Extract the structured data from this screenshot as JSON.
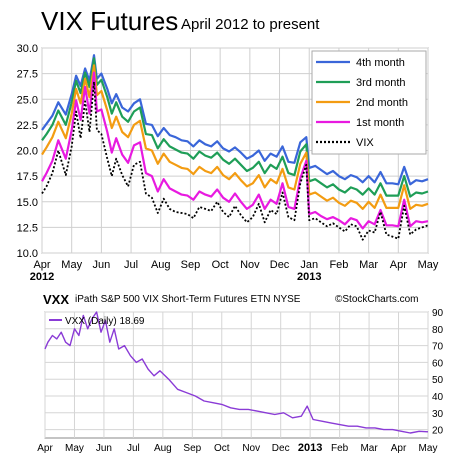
{
  "header": {
    "title": "VIX Futures",
    "subtitle": "April 2012 to present"
  },
  "chart_data": [
    {
      "type": "line",
      "title": "VIX Futures",
      "subtitle": "April 2012 to present",
      "ylim": [
        10.0,
        30.0
      ],
      "yticks": [
        "10.0",
        "12.5",
        "15.0",
        "17.5",
        "20.0",
        "22.5",
        "25.0",
        "27.5",
        "30.0"
      ],
      "xticks": [
        "Apr",
        "May",
        "Jun",
        "Jul",
        "Aug",
        "Sep",
        "Oct",
        "Nov",
        "Dec",
        "Jan",
        "Feb",
        "Mar",
        "Apr",
        "May"
      ],
      "year_labels": [
        "2012",
        "2013"
      ],
      "grid": true,
      "legend_position": "top-right",
      "x_unit": "months since start of April 2012",
      "series": [
        {
          "name": "4th month",
          "color": "#3a66d9",
          "x": [
            0,
            0.15,
            0.35,
            0.55,
            0.8,
            1.0,
            1.15,
            1.3,
            1.45,
            1.6,
            1.75,
            1.85,
            2.0,
            2.2,
            2.35,
            2.5,
            2.7,
            2.9,
            3.1,
            3.3,
            3.5,
            3.7,
            3.9,
            4.1,
            4.3,
            4.5,
            4.7,
            4.9,
            5.1,
            5.3,
            5.5,
            5.7,
            5.9,
            6.1,
            6.3,
            6.5,
            6.7,
            6.9,
            7.1,
            7.3,
            7.5,
            7.7,
            7.9,
            8.1,
            8.3,
            8.5,
            8.7,
            8.9,
            9.0,
            9.2,
            9.4,
            9.6,
            9.8,
            10.0,
            10.2,
            10.4,
            10.6,
            10.8,
            11.0,
            11.2,
            11.4,
            11.6,
            11.8,
            12.0,
            12.2,
            12.4,
            12.6,
            12.8,
            13.0
          ],
          "y": [
            22.0,
            22.6,
            23.4,
            24.7,
            23.5,
            25.5,
            27.3,
            26.3,
            28.0,
            26.8,
            29.3,
            27.0,
            27.5,
            26.0,
            24.6,
            25.5,
            24.2,
            23.8,
            24.6,
            25.0,
            22.6,
            22.5,
            21.4,
            22.2,
            21.5,
            21.3,
            21.0,
            20.9,
            20.4,
            21.0,
            20.6,
            20.4,
            20.9,
            20.2,
            19.9,
            20.3,
            19.8,
            19.2,
            19.5,
            20.0,
            19.0,
            19.7,
            19.4,
            20.4,
            18.9,
            18.8,
            20.8,
            21.3,
            18.3,
            18.5,
            18.1,
            17.7,
            18.0,
            17.5,
            17.2,
            17.6,
            17.4,
            16.9,
            17.5,
            16.9,
            17.9,
            16.8,
            16.8,
            16.7,
            18.4,
            16.7,
            17.1,
            17.0,
            17.2
          ]
        },
        {
          "name": "3rd month",
          "color": "#1f9e57",
          "x": [
            0,
            0.15,
            0.35,
            0.55,
            0.8,
            1.0,
            1.15,
            1.3,
            1.45,
            1.6,
            1.75,
            1.85,
            2.0,
            2.2,
            2.35,
            2.5,
            2.7,
            2.9,
            3.1,
            3.3,
            3.5,
            3.7,
            3.9,
            4.1,
            4.3,
            4.5,
            4.7,
            4.9,
            5.1,
            5.3,
            5.5,
            5.7,
            5.9,
            6.1,
            6.3,
            6.5,
            6.7,
            6.9,
            7.1,
            7.3,
            7.5,
            7.7,
            7.9,
            8.1,
            8.3,
            8.5,
            8.7,
            8.9,
            9.0,
            9.2,
            9.4,
            9.6,
            9.8,
            10.0,
            10.2,
            10.4,
            10.6,
            10.8,
            11.0,
            11.2,
            11.4,
            11.6,
            11.8,
            12.0,
            12.2,
            12.4,
            12.6,
            12.8,
            13.0
          ],
          "y": [
            21.0,
            21.6,
            22.5,
            23.9,
            22.5,
            24.7,
            26.8,
            25.6,
            27.6,
            26.2,
            29.0,
            26.4,
            26.9,
            25.2,
            23.6,
            24.7,
            23.3,
            22.8,
            23.8,
            24.2,
            21.6,
            21.5,
            20.2,
            21.1,
            20.4,
            20.1,
            19.8,
            19.7,
            19.2,
            19.9,
            19.5,
            19.3,
            19.8,
            19.1,
            18.7,
            19.2,
            18.6,
            18.0,
            18.3,
            18.9,
            17.8,
            18.6,
            18.2,
            19.4,
            17.8,
            17.6,
            19.9,
            20.6,
            17.0,
            17.2,
            16.8,
            16.4,
            16.7,
            16.2,
            15.9,
            16.4,
            16.2,
            15.7,
            16.3,
            15.7,
            16.8,
            15.6,
            15.6,
            15.6,
            17.5,
            15.5,
            15.9,
            15.8,
            16.0
          ]
        },
        {
          "name": "2nd month",
          "color": "#f39c12",
          "x": [
            0,
            0.15,
            0.35,
            0.55,
            0.8,
            1.0,
            1.15,
            1.3,
            1.45,
            1.6,
            1.75,
            1.85,
            2.0,
            2.2,
            2.35,
            2.5,
            2.7,
            2.9,
            3.1,
            3.3,
            3.5,
            3.7,
            3.9,
            4.1,
            4.3,
            4.5,
            4.7,
            4.9,
            5.1,
            5.3,
            5.5,
            5.7,
            5.9,
            6.1,
            6.3,
            6.5,
            6.7,
            6.9,
            7.1,
            7.3,
            7.5,
            7.7,
            7.9,
            8.1,
            8.3,
            8.5,
            8.7,
            8.9,
            9.0,
            9.2,
            9.4,
            9.6,
            9.8,
            10.0,
            10.2,
            10.4,
            10.6,
            10.8,
            11.0,
            11.2,
            11.4,
            11.6,
            11.8,
            12.0,
            12.2,
            12.4,
            12.6,
            12.8,
            13.0
          ],
          "y": [
            19.6,
            20.3,
            21.3,
            22.8,
            21.2,
            23.6,
            26.0,
            24.6,
            27.0,
            25.2,
            28.3,
            25.4,
            25.8,
            23.9,
            22.2,
            23.3,
            21.8,
            21.3,
            22.5,
            22.9,
            20.2,
            20.0,
            18.7,
            19.7,
            18.9,
            18.6,
            18.3,
            18.2,
            17.7,
            18.4,
            18.0,
            17.8,
            18.4,
            17.6,
            17.2,
            17.8,
            17.1,
            16.5,
            16.8,
            17.6,
            16.4,
            17.2,
            16.8,
            18.2,
            16.4,
            16.2,
            18.7,
            19.8,
            15.7,
            15.9,
            15.5,
            15.1,
            15.4,
            14.9,
            14.6,
            15.1,
            14.9,
            14.3,
            15.0,
            14.4,
            15.7,
            14.4,
            14.4,
            14.4,
            16.6,
            14.3,
            14.7,
            14.6,
            14.8
          ]
        },
        {
          "name": "1st month",
          "color": "#e81ae0",
          "x": [
            0,
            0.15,
            0.35,
            0.55,
            0.8,
            1.0,
            1.15,
            1.3,
            1.45,
            1.6,
            1.75,
            1.85,
            2.0,
            2.2,
            2.35,
            2.5,
            2.7,
            2.9,
            3.1,
            3.3,
            3.5,
            3.7,
            3.9,
            4.1,
            4.3,
            4.5,
            4.7,
            4.9,
            5.1,
            5.3,
            5.5,
            5.7,
            5.9,
            6.1,
            6.3,
            6.5,
            6.7,
            6.9,
            7.1,
            7.3,
            7.5,
            7.7,
            7.9,
            8.1,
            8.3,
            8.5,
            8.7,
            8.9,
            9.0,
            9.2,
            9.4,
            9.6,
            9.8,
            10.0,
            10.2,
            10.4,
            10.6,
            10.8,
            11.0,
            11.2,
            11.4,
            11.6,
            11.8,
            12.0,
            12.2,
            12.4,
            12.6,
            12.8,
            13.0
          ],
          "y": [
            17.0,
            17.8,
            19.0,
            21.0,
            19.2,
            22.0,
            24.9,
            23.0,
            26.2,
            23.6,
            27.6,
            23.8,
            24.0,
            21.8,
            19.8,
            21.2,
            19.6,
            18.8,
            20.5,
            20.8,
            17.8,
            17.5,
            16.0,
            17.2,
            16.3,
            16.0,
            15.7,
            15.6,
            15.2,
            16.0,
            15.7,
            15.5,
            16.2,
            15.4,
            15.0,
            15.8,
            15.0,
            14.3,
            14.7,
            15.7,
            14.3,
            15.2,
            14.8,
            16.8,
            14.5,
            14.3,
            17.3,
            19.0,
            13.8,
            14.0,
            13.6,
            13.3,
            13.5,
            13.2,
            12.8,
            13.4,
            13.2,
            12.4,
            13.1,
            12.8,
            14.2,
            12.7,
            12.7,
            12.6,
            15.2,
            12.6,
            13.1,
            13.0,
            13.1
          ]
        },
        {
          "name": "VIX",
          "color": "#000000",
          "dashed": true,
          "x": [
            0,
            0.15,
            0.35,
            0.55,
            0.8,
            1.0,
            1.15,
            1.3,
            1.45,
            1.6,
            1.75,
            1.85,
            2.0,
            2.2,
            2.35,
            2.5,
            2.7,
            2.9,
            3.1,
            3.3,
            3.5,
            3.7,
            3.9,
            4.1,
            4.3,
            4.5,
            4.7,
            4.9,
            5.1,
            5.3,
            5.5,
            5.7,
            5.9,
            6.1,
            6.3,
            6.5,
            6.7,
            6.9,
            7.1,
            7.3,
            7.5,
            7.7,
            7.9,
            8.1,
            8.3,
            8.5,
            8.7,
            8.9,
            9.0,
            9.2,
            9.4,
            9.6,
            9.8,
            10.0,
            10.2,
            10.4,
            10.6,
            10.8,
            11.0,
            11.2,
            11.4,
            11.6,
            11.8,
            12.0,
            12.2,
            12.4,
            12.6,
            12.8,
            13.0
          ],
          "y": [
            15.8,
            16.5,
            17.8,
            20.0,
            17.6,
            20.4,
            23.8,
            21.2,
            24.8,
            21.8,
            26.7,
            22.0,
            21.6,
            19.2,
            17.5,
            19.2,
            17.6,
            16.5,
            18.6,
            18.9,
            15.8,
            15.4,
            13.9,
            15.3,
            14.3,
            14.0,
            13.9,
            13.8,
            13.4,
            14.5,
            14.3,
            14.1,
            15.0,
            14.0,
            13.5,
            14.6,
            13.7,
            13.0,
            13.5,
            14.8,
            13.0,
            14.2,
            13.8,
            15.9,
            13.5,
            13.2,
            16.8,
            18.6,
            13.2,
            13.4,
            13.0,
            12.6,
            12.9,
            12.5,
            12.1,
            12.8,
            12.6,
            11.3,
            12.2,
            12.0,
            14.0,
            11.8,
            11.6,
            11.4,
            14.6,
            11.8,
            12.3,
            12.5,
            12.7
          ]
        }
      ]
    },
    {
      "type": "line",
      "title": "iPath S&P 500 VIX Short-Term Futures ETN",
      "symbol": "VXX",
      "exchange": "NYSE",
      "legend_label": "VXX (Daily) 18.69",
      "ylim": [
        15,
        90
      ],
      "yticks": [
        "20",
        "30",
        "40",
        "50",
        "60",
        "70",
        "80",
        "90"
      ],
      "xticks": [
        "Apr",
        "May",
        "Jun",
        "Jul",
        "Aug",
        "Sep",
        "Oct",
        "Nov",
        "Dec",
        "Jan",
        "Feb",
        "Mar",
        "Apr",
        "May"
      ],
      "year_labels": [
        "2013"
      ],
      "grid": true,
      "series": [
        {
          "name": "VXX (Daily)",
          "color": "#8a3bd6",
          "x": [
            0,
            0.1,
            0.25,
            0.4,
            0.55,
            0.7,
            0.85,
            1.0,
            1.15,
            1.3,
            1.45,
            1.6,
            1.75,
            1.9,
            2.05,
            2.2,
            2.35,
            2.5,
            2.7,
            2.9,
            3.1,
            3.3,
            3.5,
            3.7,
            3.9,
            4.2,
            4.5,
            4.8,
            5.1,
            5.4,
            5.7,
            6.0,
            6.3,
            6.6,
            6.9,
            7.2,
            7.5,
            7.8,
            8.1,
            8.4,
            8.7,
            8.9,
            9.1,
            9.4,
            9.7,
            10.0,
            10.3,
            10.6,
            10.9,
            11.2,
            11.5,
            11.8,
            12.1,
            12.4,
            12.7,
            13.0
          ],
          "y": [
            68,
            72,
            76,
            74,
            78,
            72,
            70,
            80,
            76,
            88,
            80,
            86,
            90,
            78,
            85,
            72,
            80,
            68,
            70,
            64,
            60,
            62,
            56,
            52,
            55,
            50,
            44,
            42,
            40,
            37,
            36,
            35,
            33,
            32,
            32,
            31,
            30,
            29,
            30,
            27,
            28,
            34,
            26,
            25,
            24,
            23,
            22,
            22,
            21,
            21,
            20,
            20,
            19,
            18,
            19,
            18.7
          ]
        }
      ]
    }
  ],
  "vxx_panel": {
    "symbol": "VXX",
    "description": "iPath S&P 500 VIX Short-Term Futures ETN",
    "exchange": "NYSE",
    "source": "©StockCharts.com"
  }
}
